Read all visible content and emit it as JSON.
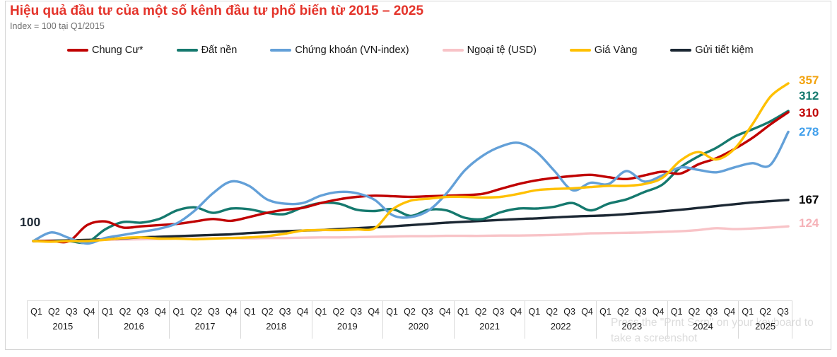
{
  "watermark": {
    "text": "Press the \"Prnt Scrn\" on your keyboard to take a screenshot"
  },
  "colors": {
    "title": "#e4332a",
    "subtitle": "#6e6e6e",
    "grid": "#d9d9d9",
    "frame": "#d5d5d5"
  },
  "chart_data": {
    "type": "line",
    "title": "Hiệu quả đầu tư của một số kênh đầu tư phổ biến từ 2015 – 2025",
    "subtitle": "Index = 100 tại Q1/2015",
    "base": {
      "label": "100",
      "value": 100
    },
    "x_axis": {
      "years": [
        {
          "label": "2015",
          "quarters": [
            "Q1",
            "Q2",
            "Q3",
            "Q4"
          ]
        },
        {
          "label": "2016",
          "quarters": [
            "Q1",
            "Q2",
            "Q3",
            "Q4"
          ]
        },
        {
          "label": "2017",
          "quarters": [
            "Q1",
            "Q2",
            "Q3",
            "Q4"
          ]
        },
        {
          "label": "2018",
          "quarters": [
            "Q1",
            "Q2",
            "Q3",
            "Q4"
          ]
        },
        {
          "label": "2019",
          "quarters": [
            "Q1",
            "Q2",
            "Q3",
            "Q4"
          ]
        },
        {
          "label": "2020",
          "quarters": [
            "Q1",
            "Q2",
            "Q3",
            "Q4"
          ]
        },
        {
          "label": "2021",
          "quarters": [
            "Q1",
            "Q2",
            "Q3",
            "Q4"
          ]
        },
        {
          "label": "2022",
          "quarters": [
            "Q1",
            "Q2",
            "Q3",
            "Q4"
          ]
        },
        {
          "label": "2023",
          "quarters": [
            "Q1",
            "Q2",
            "Q3",
            "Q4"
          ]
        },
        {
          "label": "2024",
          "quarters": [
            "Q1",
            "Q2",
            "Q3",
            "Q4"
          ]
        },
        {
          "label": "2025",
          "quarters": [
            "Q1",
            "Q2",
            "Q3"
          ]
        }
      ]
    },
    "legend_position": "top",
    "grid": false,
    "ylim": [
      90,
      370
    ],
    "series": [
      {
        "name": "Chung Cư*",
        "slug": "chung-cu",
        "color": "#c00000",
        "end_label": "310",
        "end_label_color": "#c00000",
        "label_y": 160,
        "values": [
          100,
          100,
          100,
          126,
          132,
          122,
          124,
          126,
          128,
          132,
          136,
          133,
          139,
          146,
          151,
          154,
          162,
          168,
          172,
          174,
          173,
          172,
          173,
          174,
          175,
          177,
          185,
          193,
          199,
          203,
          206,
          208,
          204,
          201,
          207,
          213,
          210,
          225,
          235,
          250,
          268,
          290,
          310
        ]
      },
      {
        "name": "Đất nền",
        "slug": "dat-nen",
        "color": "#15796e",
        "end_label": "312",
        "end_label_color": "#15796e",
        "label_y": 136,
        "values": [
          100,
          100,
          100,
          98,
          119,
          131,
          130,
          136,
          150,
          155,
          146,
          153,
          152,
          146,
          144,
          155,
          162,
          161,
          151,
          149,
          152,
          141,
          151,
          150,
          138,
          136,
          147,
          153,
          153,
          156,
          162,
          150,
          161,
          168,
          180,
          192,
          220,
          238,
          252,
          270,
          282,
          295,
          312
        ]
      },
      {
        "name": "Chứng khoán (VN-index)",
        "slug": "chung-khoan",
        "color": "#63a0d8",
        "end_label": "278",
        "end_label_color": "#42a0ec",
        "label_y": 187,
        "values": [
          100,
          114,
          105,
          96,
          105,
          110,
          115,
          120,
          129,
          150,
          178,
          197,
          190,
          168,
          161,
          162,
          174,
          180,
          178,
          167,
          142,
          139,
          150,
          178,
          215,
          239,
          254,
          260,
          245,
          214,
          183,
          195,
          193,
          214,
          197,
          207,
          220,
          216,
          212,
          220,
          227,
          224,
          278
        ]
      },
      {
        "name": "Ngoại tệ (USD)",
        "slug": "ngoai-te",
        "color": "#f8c3c7",
        "end_label": "124",
        "end_label_color": "#f5b2b8",
        "label_y": 316,
        "values": [
          100,
          100.5,
          101,
          101.5,
          102,
          102.5,
          103,
          103.5,
          104,
          104,
          104.5,
          105,
          104.5,
          105,
          105,
          105.5,
          106,
          106,
          106.5,
          107,
          107.5,
          108,
          108,
          108.5,
          108.5,
          108.5,
          109,
          109,
          109.5,
          110,
          111,
          112.5,
          113,
          113.5,
          114,
          115,
          116,
          118,
          121,
          119.5,
          120.5,
          122,
          124
        ]
      },
      {
        "name": "Giá Vàng",
        "slug": "gia-vang",
        "color": "#ffc000",
        "end_label": "357",
        "end_label_color": "#f2a20d",
        "label_y": 114,
        "values": [
          100,
          99,
          100,
          100,
          102,
          105,
          106,
          104,
          104,
          103,
          104,
          105,
          106,
          108,
          112,
          117,
          118,
          118,
          119,
          121,
          152,
          166,
          169,
          172,
          172,
          171,
          172,
          177,
          183,
          185,
          186,
          188,
          190,
          190,
          193,
          203,
          231,
          245,
          233,
          250,
          290,
          335,
          357
        ]
      },
      {
        "name": "Gửi tiết kiệm",
        "slug": "gui-tiet-kiem",
        "color": "#1b2733",
        "end_label": "167",
        "end_label_color": "#000000",
        "label_y": 283,
        "values": [
          100,
          100.5,
          101,
          102,
          103,
          104.5,
          106,
          107,
          108,
          109,
          110,
          111,
          113,
          114.5,
          116,
          117,
          118,
          119.5,
          121,
          122.5,
          124,
          126,
          128,
          130,
          131.5,
          133,
          134.5,
          136,
          137,
          138.5,
          140,
          141,
          142,
          144,
          146,
          148.5,
          151,
          154,
          157,
          160,
          163,
          165,
          167
        ]
      }
    ]
  }
}
